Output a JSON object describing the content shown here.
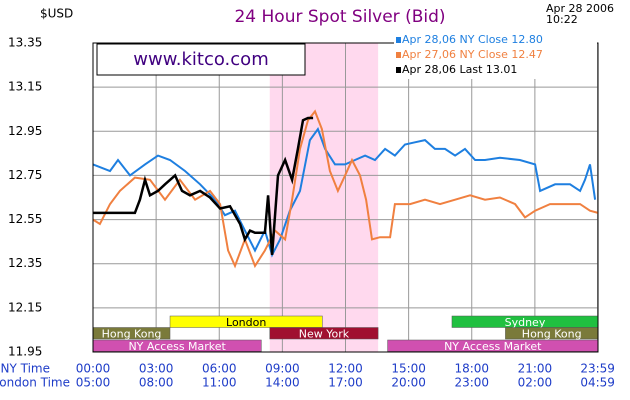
{
  "chart_data": {
    "type": "line",
    "title": "24 Hour Spot Silver (Bid)",
    "y_label": "$USD",
    "date": "Apr 28 2006",
    "time": "10:22",
    "watermark": "www.kitco.com",
    "x_label": "NY Time",
    "x2_label": "London Time",
    "xlim": [
      0,
      24
    ],
    "xticks": [
      {
        "value": 0,
        "label": "00:00"
      },
      {
        "value": 3,
        "label": "03:00"
      },
      {
        "value": 6,
        "label": "06:00"
      },
      {
        "value": 9,
        "label": "09:00"
      },
      {
        "value": 12,
        "label": "12:00"
      },
      {
        "value": 15,
        "label": "15:00"
      },
      {
        "value": 18,
        "label": "18:00"
      },
      {
        "value": 21,
        "label": "21:00"
      },
      {
        "value": 23.983,
        "label": "23:59"
      }
    ],
    "x2ticklabels": [
      "05:00",
      "08:00",
      "11:00",
      "14:00",
      "17:00",
      "20:00",
      "23:00",
      "02:00",
      "04:59"
    ],
    "ylim": [
      11.95,
      13.35
    ],
    "yticks": [
      11.95,
      12.15,
      12.35,
      12.55,
      12.75,
      12.95,
      13.15,
      13.35
    ],
    "grid": true,
    "highlight": {
      "start": 8.4,
      "end": 13.55,
      "color": "#ffd9ee"
    },
    "sessions": [
      {
        "name": "London",
        "row": 0,
        "start": 3.66,
        "end": 10.9,
        "color": "#ffff00",
        "text_color": "#000000"
      },
      {
        "name": "Sydney",
        "row": 0,
        "start": 17.06,
        "end": 24,
        "color": "#20c040",
        "text_color": "#ffffff"
      },
      {
        "name": "Hong Kong",
        "row": 1,
        "start": 0,
        "end": 3.66,
        "color": "#7a7a3a",
        "text_color": "#ffffff"
      },
      {
        "name": "New York",
        "row": 1,
        "start": 8.4,
        "end": 13.55,
        "color": "#a01030",
        "text_color": "#ffffff"
      },
      {
        "name": "Hong Kong",
        "row": 1,
        "start": 19.6,
        "end": 24,
        "color": "#7a7a3a",
        "text_color": "#ffffff"
      },
      {
        "name": "NY Access Market",
        "row": 2,
        "start": 0,
        "end": 8.0,
        "color": "#d050b0",
        "text_color": "#ffffff"
      },
      {
        "name": "NY Access Market",
        "row": 2,
        "start": 14.0,
        "end": 24,
        "color": "#d050b0",
        "text_color": "#ffffff"
      }
    ],
    "series": [
      {
        "name": "Apr 28,06 NY Close 12.80",
        "color": "#1e7fe0",
        "x": [
          0,
          0.81,
          1.19,
          1.76,
          2.47,
          3.09,
          3.66,
          4.37,
          5.09,
          5.8,
          6.27,
          6.75,
          7.22,
          7.7,
          8.17,
          8.51,
          8.89,
          9.36,
          9.84,
          10.31,
          10.69,
          11.03,
          11.5,
          11.98,
          12.45,
          12.93,
          13.4,
          13.88,
          14.35,
          14.83,
          15.3,
          15.78,
          16.25,
          16.73,
          17.21,
          17.68,
          18.16,
          18.63,
          19.34,
          20.29,
          21.01,
          21.25,
          21.96,
          22.67,
          23.15,
          23.38,
          23.62,
          23.86
        ],
        "values": [
          12.8,
          12.77,
          12.82,
          12.75,
          12.8,
          12.84,
          12.82,
          12.77,
          12.71,
          12.64,
          12.57,
          12.59,
          12.5,
          12.41,
          12.5,
          12.39,
          12.46,
          12.59,
          12.68,
          12.91,
          12.96,
          12.87,
          12.8,
          12.8,
          12.82,
          12.84,
          12.82,
          12.87,
          12.84,
          12.89,
          12.9,
          12.91,
          12.87,
          12.87,
          12.84,
          12.87,
          12.82,
          12.82,
          12.83,
          12.82,
          12.8,
          12.68,
          12.71,
          12.71,
          12.68,
          12.73,
          12.8,
          12.64
        ]
      },
      {
        "name": "Apr 27,06 NY Close 12.47",
        "color": "#f08040",
        "x": [
          0,
          0.33,
          0.81,
          1.28,
          1.99,
          2.71,
          3.42,
          4.13,
          4.85,
          5.56,
          6.04,
          6.42,
          6.75,
          7.22,
          7.7,
          8.17,
          8.65,
          9.13,
          9.46,
          9.84,
          10.22,
          10.55,
          10.88,
          11.26,
          11.64,
          11.98,
          12.31,
          12.69,
          12.98,
          13.26,
          13.64,
          14.12,
          14.35,
          15.07,
          15.78,
          16.49,
          17.21,
          17.92,
          18.63,
          19.34,
          20.06,
          20.53,
          21.01,
          21.72,
          22.43,
          23.15,
          23.62,
          24
        ],
        "values": [
          12.55,
          12.53,
          12.62,
          12.68,
          12.74,
          12.73,
          12.64,
          12.73,
          12.64,
          12.68,
          12.62,
          12.41,
          12.34,
          12.46,
          12.34,
          12.41,
          12.5,
          12.46,
          12.64,
          12.87,
          13.0,
          13.04,
          12.96,
          12.77,
          12.68,
          12.75,
          12.82,
          12.75,
          12.64,
          12.46,
          12.47,
          12.47,
          12.62,
          12.62,
          12.64,
          12.62,
          12.64,
          12.66,
          12.64,
          12.65,
          12.62,
          12.56,
          12.59,
          12.62,
          12.62,
          12.62,
          12.59,
          12.58
        ]
      },
      {
        "name": "Apr 28,06 Last 13.01",
        "color": "#000000",
        "x": [
          0,
          0.81,
          1.99,
          2.23,
          2.47,
          2.71,
          3.09,
          3.42,
          3.9,
          4.23,
          4.61,
          5.09,
          5.56,
          6.04,
          6.51,
          6.99,
          7.22,
          7.46,
          7.7,
          8.17,
          8.32,
          8.51,
          8.79,
          9.13,
          9.46,
          9.74,
          9.98,
          10.22,
          10.46
        ],
        "values": [
          12.58,
          12.58,
          12.58,
          12.64,
          12.73,
          12.66,
          12.68,
          12.71,
          12.75,
          12.68,
          12.66,
          12.68,
          12.65,
          12.6,
          12.61,
          12.53,
          12.46,
          12.5,
          12.49,
          12.49,
          12.66,
          12.39,
          12.75,
          12.82,
          12.73,
          12.87,
          13.0,
          13.01,
          13.01
        ]
      }
    ]
  }
}
